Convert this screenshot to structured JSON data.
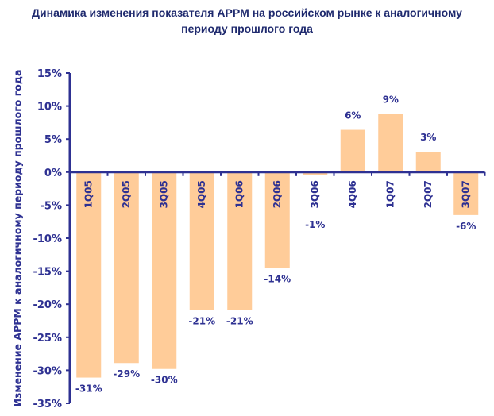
{
  "chart_data": {
    "type": "bar",
    "title_line1": "Динамика изменения показателя APPM на российском рынке к аналогичному",
    "title_line2": "периоду прошлого года",
    "xlabel": "",
    "ylabel": "Изменение APPM к аналогичному периоду прошлого года",
    "categories": [
      "1Q05",
      "2Q05",
      "3Q05",
      "4Q05",
      "1Q06",
      "2Q06",
      "3Q06",
      "4Q06",
      "1Q07",
      "2Q07",
      "3Q07"
    ],
    "values": [
      -31.1,
      -28.9,
      -29.8,
      -20.9,
      -20.9,
      -14.5,
      -0.5,
      6.4,
      8.8,
      3.1,
      -6.5
    ],
    "data_labels": [
      "-31%",
      "-29%",
      "-30%",
      "-21%",
      "-21%",
      "-14%",
      "-1%",
      "6%",
      "9%",
      "3%",
      "-6%"
    ],
    "ylim": [
      -35,
      15
    ],
    "yticks": [
      15,
      10,
      5,
      0,
      -5,
      -10,
      -15,
      -20,
      -25,
      -30,
      -35
    ],
    "ytick_labels": [
      "15%",
      "10%",
      "5%",
      "0%",
      "-5%",
      "-10%",
      "-15%",
      "-20%",
      "-25%",
      "-30%",
      "-35%"
    ],
    "grid": false,
    "colors": {
      "bar": "#FFCC99",
      "axis": "#2E3192"
    }
  }
}
